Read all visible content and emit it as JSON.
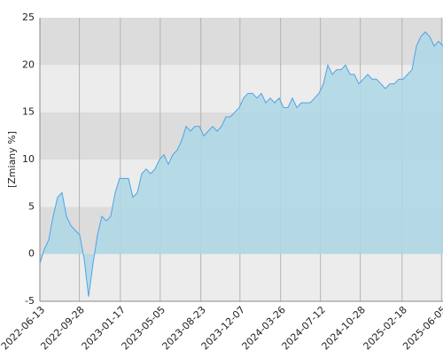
{
  "chart_data": {
    "type": "area",
    "y_label": "[Zmiany %]",
    "x": [
      "2022-06-13",
      "2022-06-25",
      "2022-07-07",
      "2022-07-19",
      "2022-07-31",
      "2022-08-12",
      "2022-08-24",
      "2022-09-05",
      "2022-09-17",
      "2022-09-29",
      "2022-10-11",
      "2022-10-23",
      "2022-11-04",
      "2022-11-16",
      "2022-11-28",
      "2022-12-10",
      "2022-12-22",
      "2023-01-03",
      "2023-01-15",
      "2023-01-27",
      "2023-02-08",
      "2023-02-20",
      "2023-03-04",
      "2023-03-16",
      "2023-03-28",
      "2023-04-09",
      "2023-04-21",
      "2023-05-03",
      "2023-05-15",
      "2023-05-27",
      "2023-06-08",
      "2023-06-20",
      "2023-07-02",
      "2023-07-14",
      "2023-07-26",
      "2023-08-07",
      "2023-08-19",
      "2023-08-31",
      "2023-09-12",
      "2023-09-24",
      "2023-10-06",
      "2023-10-18",
      "2023-10-30",
      "2023-11-11",
      "2023-11-23",
      "2023-12-05",
      "2023-12-17",
      "2023-12-29",
      "2024-01-10",
      "2024-01-22",
      "2024-02-03",
      "2024-02-15",
      "2024-02-27",
      "2024-03-10",
      "2024-03-22",
      "2024-04-03",
      "2024-04-15",
      "2024-04-27",
      "2024-05-09",
      "2024-05-21",
      "2024-06-02",
      "2024-06-14",
      "2024-06-26",
      "2024-07-08",
      "2024-07-20",
      "2024-08-01",
      "2024-08-13",
      "2024-08-25",
      "2024-09-06",
      "2024-09-18",
      "2024-09-30",
      "2024-10-12",
      "2024-10-24",
      "2024-11-05",
      "2024-11-17",
      "2024-11-29",
      "2024-12-11",
      "2024-12-23",
      "2025-01-04",
      "2025-01-16",
      "2025-01-28",
      "2025-02-09",
      "2025-02-21",
      "2025-03-05",
      "2025-03-17",
      "2025-03-29",
      "2025-04-10",
      "2025-04-22",
      "2025-05-04",
      "2025-05-16",
      "2025-05-28",
      "2025-06-09"
    ],
    "values": [
      -1,
      0.5,
      1.5,
      4,
      6,
      6.5,
      4,
      3,
      2.5,
      2,
      -0.5,
      -4.5,
      -1,
      2,
      4,
      3.5,
      4,
      6.5,
      8,
      8,
      8,
      6,
      6.5,
      8.5,
      9,
      8.5,
      9,
      10,
      10.5,
      9.5,
      10.5,
      11,
      12,
      13.5,
      13,
      13.5,
      13.5,
      12.5,
      13,
      13.5,
      13,
      13.5,
      14.5,
      14.5,
      15,
      15.5,
      16.5,
      17,
      17,
      16.5,
      17,
      16,
      16.5,
      16,
      16.5,
      15.5,
      15.5,
      16.5,
      15.5,
      16,
      16,
      16,
      16.5,
      17,
      18,
      20,
      19,
      19.5,
      19.5,
      20,
      19,
      19,
      18,
      18.5,
      19,
      18.5,
      18.5,
      18,
      17.5,
      18,
      18,
      18.5,
      18.5,
      19,
      19.5,
      22,
      23,
      23.5,
      23,
      22,
      22.5,
      22
    ],
    "line_color": "#4da3e6",
    "fill_color": "#add8e6",
    "xlim": [
      "2022-06-13",
      "2025-06-09"
    ],
    "xticks": [
      "2022-06-13",
      "2022-09-28",
      "2023-01-17",
      "2023-05-05",
      "2023-08-23",
      "2023-12-07",
      "2024-03-26",
      "2024-07-12",
      "2024-10-28",
      "2025-02-18",
      "2025-06-05"
    ],
    "ylim": [
      -5,
      25
    ],
    "yticks": [
      -5,
      0,
      5,
      10,
      15,
      20,
      25
    ],
    "band_colors": [
      "#ececec",
      "#dcdcdc"
    ],
    "grid": true
  }
}
